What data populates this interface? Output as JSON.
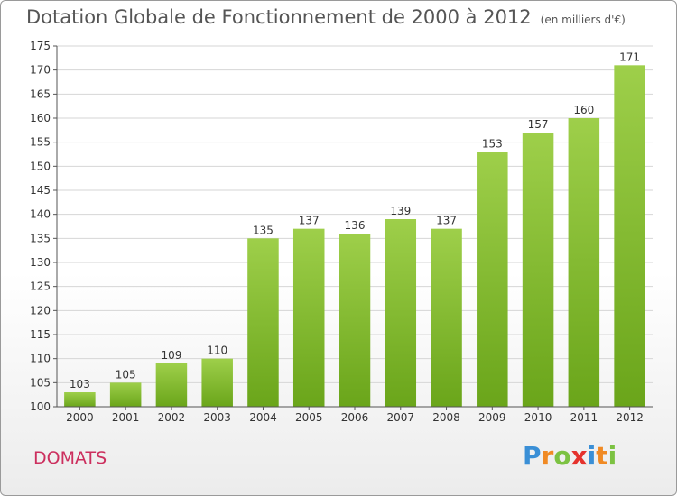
{
  "header": {
    "title": "Dotation Globale de Fonctionnement de 2000 à 2012",
    "subtitle": "(en milliers d'€)"
  },
  "commune": "DOMATS",
  "logo": {
    "letters": [
      "P",
      "r",
      "o",
      "x",
      "i",
      "t",
      "i"
    ],
    "colors": [
      "#3a8fd6",
      "#f08a24",
      "#7cc242",
      "#e5322d",
      "#3a8fd6",
      "#f08a24",
      "#7cc242"
    ]
  },
  "chart_data": {
    "type": "bar",
    "categories": [
      "2000",
      "2001",
      "2002",
      "2003",
      "2004",
      "2005",
      "2006",
      "2007",
      "2008",
      "2009",
      "2010",
      "2011",
      "2012"
    ],
    "values": [
      103,
      105,
      109,
      110,
      135,
      137,
      136,
      139,
      137,
      153,
      157,
      160,
      171
    ],
    "ylim": [
      100,
      175
    ],
    "yticks": [
      100,
      105,
      110,
      115,
      120,
      125,
      130,
      135,
      140,
      145,
      150,
      155,
      160,
      165,
      170,
      175
    ],
    "grid": true,
    "colors": {
      "bar_top": "#9ecf4a",
      "bar_bottom": "#6aa51a",
      "grid": "#d6d6d6",
      "axis": "#555555"
    }
  }
}
